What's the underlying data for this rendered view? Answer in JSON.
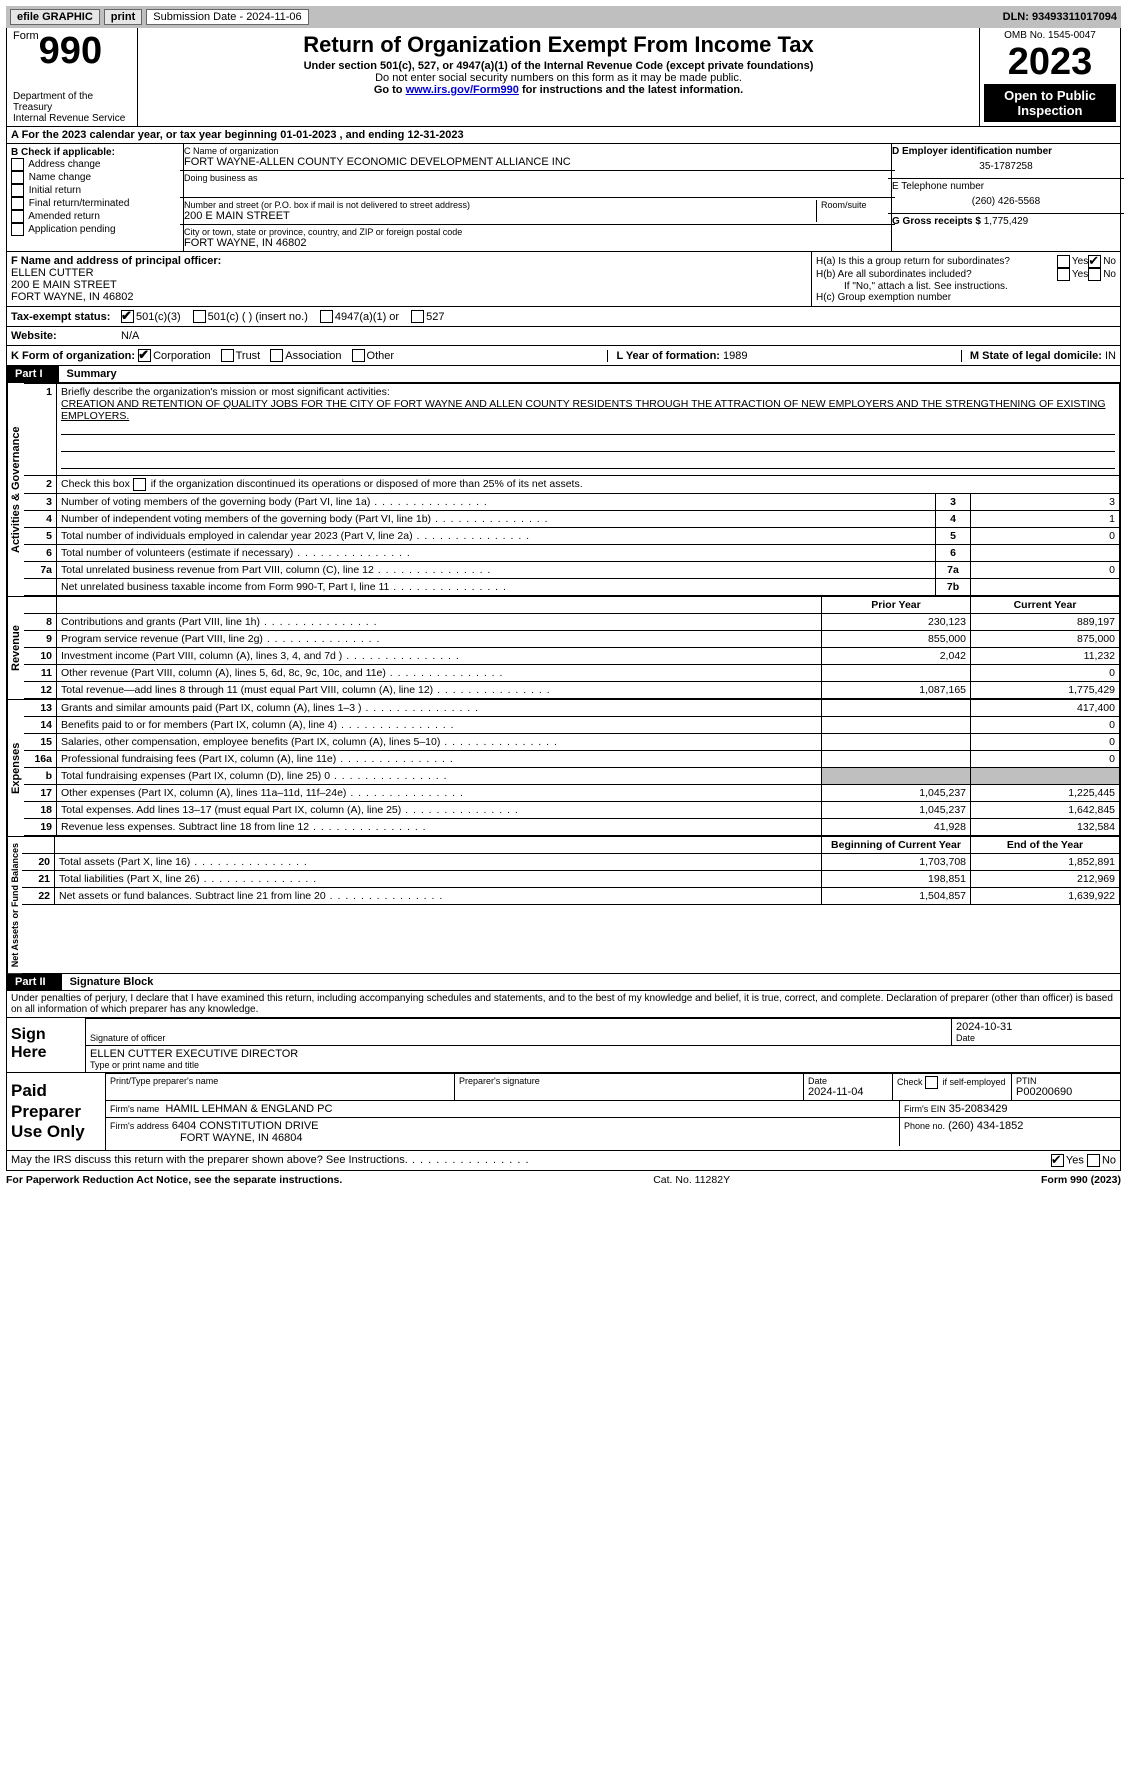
{
  "topbar": {
    "efile": "efile GRAPHIC",
    "print": "print",
    "subdate_label": "Submission Date - ",
    "subdate": "2024-11-06",
    "dln_label": "DLN: ",
    "dln": "93493311017094"
  },
  "header": {
    "form": "990",
    "form_word": "Form",
    "title": "Return of Organization Exempt From Income Tax",
    "subtitle": "Under section 501(c), 527, or 4947(a)(1) of the Internal Revenue Code (except private foundations)",
    "warn": "Do not enter social security numbers on this form as it may be made public.",
    "goto_pre": "Go to ",
    "goto_link": "www.irs.gov/Form990",
    "goto_post": " for instructions and the latest information.",
    "dept": "Department of the Treasury",
    "irs": "Internal Revenue Service",
    "omb": "OMB No. 1545-0047",
    "year": "2023",
    "opi": "Open to Public Inspection"
  },
  "periodA": {
    "pre": "A For the 2023 calendar year, or tax year beginning ",
    "begin": "01-01-2023",
    "mid": " , and ending ",
    "end": "12-31-2023"
  },
  "colB": {
    "title": "B Check if applicable:",
    "opts": [
      "Address change",
      "Name change",
      "Initial return",
      "Final return/terminated",
      "Amended return",
      "Application pending"
    ]
  },
  "colC": {
    "name_label": "C Name of organization",
    "name": "FORT WAYNE-ALLEN COUNTY ECONOMIC DEVELOPMENT ALLIANCE INC",
    "dba_label": "Doing business as",
    "street_label": "Number and street (or P.O. box if mail is not delivered to street address)",
    "street": "200 E MAIN STREET",
    "suite_label": "Room/suite",
    "city_label": "City or town, state or province, country, and ZIP or foreign postal code",
    "city": "FORT WAYNE, IN  46802"
  },
  "colD": {
    "ein_label": "D Employer identification number",
    "ein": "35-1787258",
    "phone_label": "E Telephone number",
    "phone": "(260) 426-5568",
    "gross_label": "G Gross receipts $ ",
    "gross": "1,775,429"
  },
  "F": {
    "label": "F  Name and address of principal officer:",
    "name": "ELLEN CUTTER",
    "street": "200 E MAIN STREET",
    "city": "FORT WAYNE, IN  46802"
  },
  "H": {
    "a": "H(a)  Is this a group return for subordinates?",
    "b": "H(b)  Are all subordinates included?",
    "bnote": "If \"No,\" attach a list. See instructions.",
    "c": "H(c)  Group exemption number",
    "yes": "Yes",
    "no": "No"
  },
  "I": {
    "label": "Tax-exempt status:",
    "o1": "501(c)(3)",
    "o2": "501(c) (  ) (insert no.)",
    "o3": "4947(a)(1) or",
    "o4": "527"
  },
  "J": {
    "label": "Website:",
    "val": "N/A"
  },
  "K": {
    "label": "K Form of organization:",
    "opts": [
      "Corporation",
      "Trust",
      "Association",
      "Other"
    ],
    "L": "L Year of formation: ",
    "Lv": "1989",
    "M": "M State of legal domicile: ",
    "Mv": "IN"
  },
  "part1": {
    "label": "Part I",
    "title": "Summary"
  },
  "summary": {
    "l1": "Briefly describe the organization's mission or most significant activities:",
    "mission": "CREATION AND RETENTION OF QUALITY JOBS FOR THE CITY OF FORT WAYNE AND ALLEN COUNTY RESIDENTS THROUGH THE ATTRACTION OF NEW EMPLOYERS AND THE STRENGTHENING OF EXISTING EMPLOYERS.",
    "l2": "Check this box      if the organization discontinued its operations or disposed of more than 25% of its net assets.",
    "rows_ag": [
      {
        "n": "3",
        "t": "Number of voting members of the governing body (Part VI, line 1a)",
        "b": "3",
        "v": "3"
      },
      {
        "n": "4",
        "t": "Number of independent voting members of the governing body (Part VI, line 1b)",
        "b": "4",
        "v": "1"
      },
      {
        "n": "5",
        "t": "Total number of individuals employed in calendar year 2023 (Part V, line 2a)",
        "b": "5",
        "v": "0"
      },
      {
        "n": "6",
        "t": "Total number of volunteers (estimate if necessary)",
        "b": "6",
        "v": ""
      },
      {
        "n": "7a",
        "t": "Total unrelated business revenue from Part VIII, column (C), line 12",
        "b": "7a",
        "v": "0"
      },
      {
        "n": "",
        "t": "Net unrelated business taxable income from Form 990-T, Part I, line 11",
        "b": "7b",
        "v": ""
      }
    ],
    "hdr_prior": "Prior Year",
    "hdr_curr": "Current Year",
    "rows_rev": [
      {
        "n": "8",
        "t": "Contributions and grants (Part VIII, line 1h)",
        "p": "230,123",
        "c": "889,197"
      },
      {
        "n": "9",
        "t": "Program service revenue (Part VIII, line 2g)",
        "p": "855,000",
        "c": "875,000"
      },
      {
        "n": "10",
        "t": "Investment income (Part VIII, column (A), lines 3, 4, and 7d )",
        "p": "2,042",
        "c": "11,232"
      },
      {
        "n": "11",
        "t": "Other revenue (Part VIII, column (A), lines 5, 6d, 8c, 9c, 10c, and 11e)",
        "p": "",
        "c": "0"
      },
      {
        "n": "12",
        "t": "Total revenue—add lines 8 through 11 (must equal Part VIII, column (A), line 12)",
        "p": "1,087,165",
        "c": "1,775,429"
      }
    ],
    "rows_exp": [
      {
        "n": "13",
        "t": "Grants and similar amounts paid (Part IX, column (A), lines 1–3 )",
        "p": "",
        "c": "417,400"
      },
      {
        "n": "14",
        "t": "Benefits paid to or for members (Part IX, column (A), line 4)",
        "p": "",
        "c": "0"
      },
      {
        "n": "15",
        "t": "Salaries, other compensation, employee benefits (Part IX, column (A), lines 5–10)",
        "p": "",
        "c": "0"
      },
      {
        "n": "16a",
        "t": "Professional fundraising fees (Part IX, column (A), line 11e)",
        "p": "",
        "c": "0"
      },
      {
        "n": "b",
        "t": "Total fundraising expenses (Part IX, column (D), line 25) 0",
        "p": "shade",
        "c": "shade"
      },
      {
        "n": "17",
        "t": "Other expenses (Part IX, column (A), lines 11a–11d, 11f–24e)",
        "p": "1,045,237",
        "c": "1,225,445"
      },
      {
        "n": "18",
        "t": "Total expenses. Add lines 13–17 (must equal Part IX, column (A), line 25)",
        "p": "1,045,237",
        "c": "1,642,845"
      },
      {
        "n": "19",
        "t": "Revenue less expenses. Subtract line 18 from line 12",
        "p": "41,928",
        "c": "132,584"
      }
    ],
    "hdr_beg": "Beginning of Current Year",
    "hdr_end": "End of the Year",
    "rows_na": [
      {
        "n": "20",
        "t": "Total assets (Part X, line 16)",
        "p": "1,703,708",
        "c": "1,852,891"
      },
      {
        "n": "21",
        "t": "Total liabilities (Part X, line 26)",
        "p": "198,851",
        "c": "212,969"
      },
      {
        "n": "22",
        "t": "Net assets or fund balances. Subtract line 21 from line 20",
        "p": "1,504,857",
        "c": "1,639,922"
      }
    ],
    "side_ag": "Activities & Governance",
    "side_rev": "Revenue",
    "side_exp": "Expenses",
    "side_na": "Net Assets or Fund Balances"
  },
  "part2": {
    "label": "Part II",
    "title": "Signature Block",
    "decl": "Under penalties of perjury, I declare that I have examined this return, including accompanying schedules and statements, and to the best of my knowledge and belief, it is true, correct, and complete. Declaration of preparer (other than officer) is based on all information of which preparer has any knowledge."
  },
  "sign": {
    "here": "Sign Here",
    "sig_label": "Signature of officer",
    "date_label": "Date",
    "date": "2024-10-31",
    "name": "ELLEN CUTTER  EXECUTIVE DIRECTOR",
    "name_label": "Type or print name and title"
  },
  "paid": {
    "label": "Paid Preparer Use Only",
    "pname_label": "Print/Type preparer's name",
    "psig_label": "Preparer's signature",
    "pdate_label": "Date",
    "pdate": "2024-11-04",
    "check_label": "Check       if self-employed",
    "ptin_label": "PTIN",
    "ptin": "P00200690",
    "firm_label": "Firm's name",
    "firm": "HAMIL LEHMAN & ENGLAND PC",
    "fein_label": "Firm's EIN",
    "fein": "35-2083429",
    "faddr_label": "Firm's address",
    "faddr1": "6404 CONSTITUTION DRIVE",
    "faddr2": "FORT WAYNE, IN  46804",
    "fphone_label": "Phone no.",
    "fphone": "(260) 434-1852",
    "discuss": "May the IRS discuss this return with the preparer shown above? See Instructions."
  },
  "footer": {
    "l": "For Paperwork Reduction Act Notice, see the separate instructions.",
    "c": "Cat. No. 11282Y",
    "r": "Form 990 (2023)"
  }
}
